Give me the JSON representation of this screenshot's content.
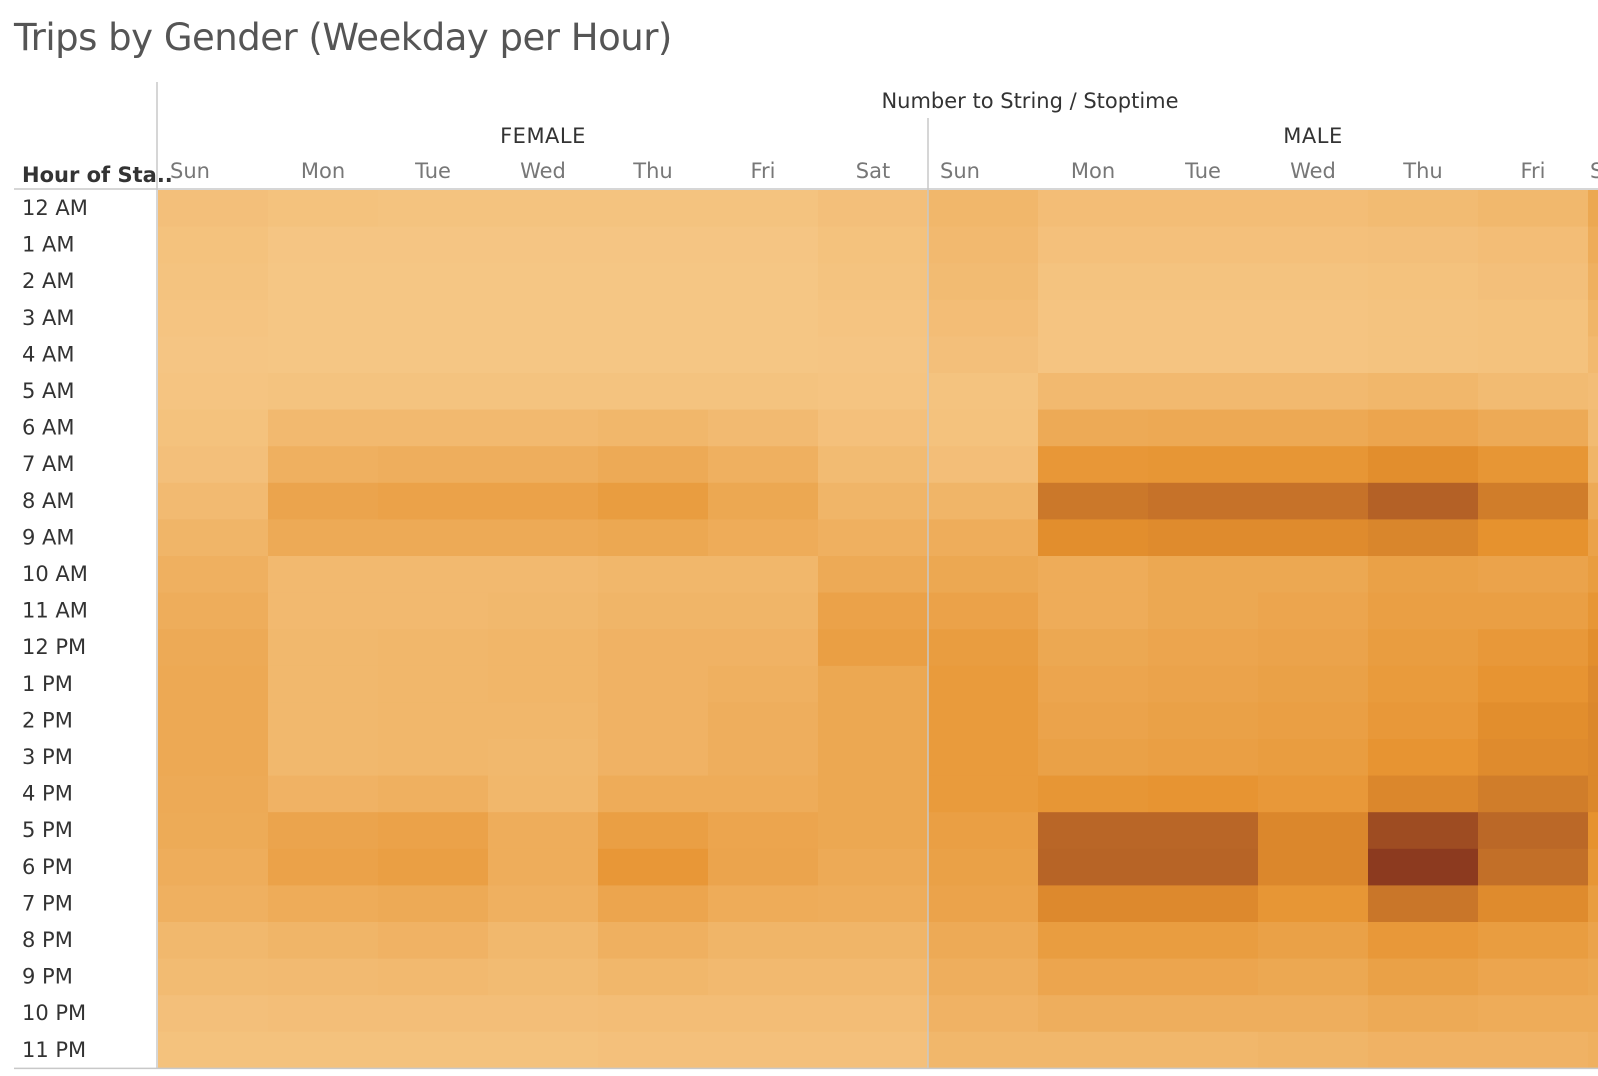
{
  "title": "Trips by Gender (Weekday per Hour)",
  "chart_data": {
    "type": "heatmap",
    "title": "Trips by Gender (Weekday per Hour)",
    "column_axis_label": "Number to String / Stoptime",
    "row_axis_label": "Hour of Sta..",
    "groups": [
      {
        "name": "FEMALE",
        "days": [
          "Sun",
          "Mon",
          "Tue",
          "Wed",
          "Thu",
          "Fri",
          "Sat"
        ]
      },
      {
        "name": "MALE",
        "days": [
          "Sun",
          "Mon",
          "Tue",
          "Wed",
          "Thu",
          "Fri",
          "Sa"
        ]
      }
    ],
    "hours": [
      "12 AM",
      "1 AM",
      "2 AM",
      "3 AM",
      "4 AM",
      "5 AM",
      "6 AM",
      "7 AM",
      "8 AM",
      "9 AM",
      "10 AM",
      "11 AM",
      "12 PM",
      "1 PM",
      "2 PM",
      "3 PM",
      "4 PM",
      "5 PM",
      "6 PM",
      "7 PM",
      "8 PM",
      "9 PM",
      "10 PM",
      "11 PM"
    ],
    "value_scale": "relative trip intensity 0-100 (no printed legend)",
    "color_range": [
      "#f6c888",
      "#e6922e",
      "#8c3a1f"
    ],
    "values": {
      "FEMALE": [
        [
          8,
          6,
          5,
          5,
          5,
          5,
          8
        ],
        [
          6,
          3,
          3,
          3,
          3,
          3,
          6
        ],
        [
          5,
          2,
          2,
          2,
          2,
          2,
          5
        ],
        [
          4,
          2,
          2,
          2,
          2,
          2,
          4
        ],
        [
          3,
          2,
          2,
          2,
          2,
          2,
          3
        ],
        [
          4,
          5,
          5,
          5,
          5,
          5,
          4
        ],
        [
          6,
          14,
          14,
          14,
          16,
          13,
          7
        ],
        [
          8,
          22,
          24,
          24,
          28,
          22,
          12
        ],
        [
          13,
          33,
          35,
          35,
          40,
          30,
          18
        ],
        [
          18,
          28,
          28,
          28,
          30,
          26,
          22
        ],
        [
          22,
          14,
          14,
          14,
          16,
          16,
          28
        ],
        [
          25,
          14,
          14,
          15,
          18,
          18,
          35
        ],
        [
          28,
          15,
          16,
          17,
          20,
          20,
          38
        ],
        [
          29,
          15,
          16,
          17,
          20,
          22,
          30
        ],
        [
          29,
          15,
          16,
          16,
          20,
          24,
          30
        ],
        [
          29,
          15,
          16,
          15,
          20,
          24,
          30
        ],
        [
          28,
          20,
          22,
          16,
          26,
          26,
          30
        ],
        [
          27,
          33,
          35,
          25,
          38,
          32,
          30
        ],
        [
          25,
          35,
          38,
          25,
          45,
          33,
          28
        ],
        [
          22,
          26,
          28,
          22,
          32,
          26,
          25
        ],
        [
          15,
          18,
          20,
          15,
          22,
          18,
          18
        ],
        [
          12,
          13,
          14,
          12,
          16,
          14,
          14
        ],
        [
          8,
          9,
          9,
          9,
          10,
          10,
          10
        ],
        [
          6,
          6,
          6,
          6,
          7,
          7,
          7
        ]
      ],
      "MALE": [
        [
          16,
          10,
          10,
          10,
          12,
          15,
          30
        ],
        [
          14,
          7,
          7,
          7,
          8,
          10,
          26
        ],
        [
          12,
          5,
          5,
          5,
          6,
          8,
          22
        ],
        [
          10,
          4,
          4,
          4,
          5,
          6,
          18
        ],
        [
          8,
          4,
          4,
          4,
          5,
          6,
          14
        ],
        [
          5,
          14,
          14,
          14,
          16,
          12,
          10
        ],
        [
          6,
          28,
          29,
          29,
          32,
          28,
          12
        ],
        [
          9,
          45,
          46,
          46,
          52,
          46,
          18
        ],
        [
          18,
          65,
          68,
          68,
          78,
          62,
          28
        ],
        [
          25,
          52,
          54,
          54,
          57,
          50,
          35
        ],
        [
          30,
          26,
          30,
          30,
          36,
          34,
          40
        ],
        [
          35,
          26,
          30,
          32,
          38,
          38,
          46
        ],
        [
          40,
          30,
          32,
          34,
          40,
          44,
          52
        ],
        [
          42,
          32,
          34,
          36,
          42,
          48,
          55
        ],
        [
          42,
          34,
          36,
          38,
          44,
          52,
          56
        ],
        [
          42,
          36,
          38,
          40,
          48,
          54,
          56
        ],
        [
          42,
          46,
          48,
          44,
          56,
          62,
          56
        ],
        [
          38,
          75,
          75,
          56,
          90,
          74,
          50
        ],
        [
          36,
          76,
          76,
          56,
          100,
          70,
          46
        ],
        [
          34,
          55,
          55,
          46,
          66,
          54,
          40
        ],
        [
          28,
          40,
          40,
          36,
          44,
          40,
          34
        ],
        [
          24,
          32,
          32,
          30,
          36,
          32,
          30
        ],
        [
          20,
          24,
          24,
          24,
          28,
          26,
          26
        ],
        [
          16,
          16,
          16,
          18,
          20,
          20,
          22
        ]
      ]
    }
  }
}
